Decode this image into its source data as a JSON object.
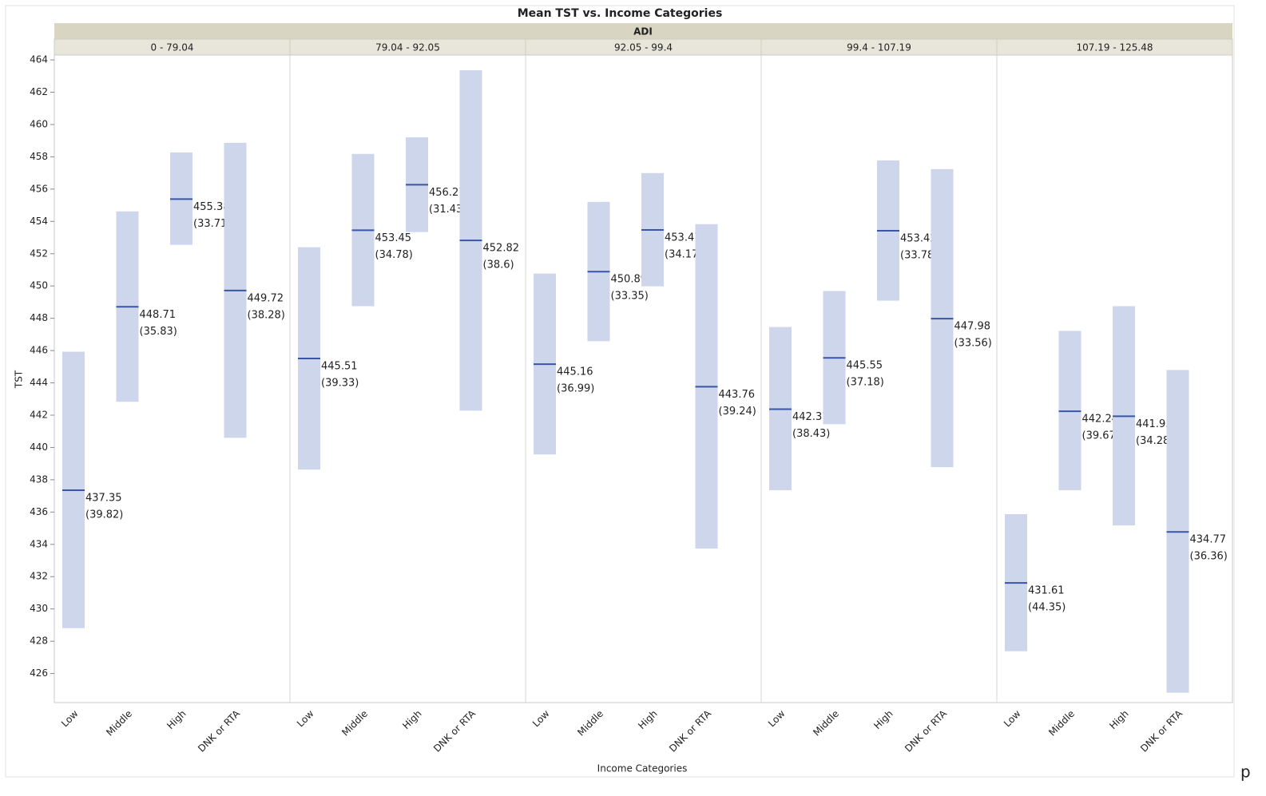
{
  "chart_data": {
    "type": "interval",
    "title": "Mean TST vs. Income Categories",
    "facet_label": "ADI",
    "y_label": "TST",
    "x_label": "Income Categories",
    "note": "p",
    "ylim": [
      424.2,
      464.3
    ],
    "yticks": [
      426,
      428,
      430,
      432,
      434,
      436,
      438,
      440,
      442,
      444,
      446,
      448,
      450,
      452,
      454,
      456,
      458,
      460,
      462,
      464
    ],
    "bar_color": "#cdd6ea",
    "mean_color": "#3a55a8",
    "categories": [
      "Low",
      "Middle",
      "High",
      "DNK or RTA"
    ],
    "panels": [
      {
        "name": "0 - 79.04",
        "values": [
          437.35,
          448.71,
          455.38,
          449.72
        ],
        "sd": [
          39.82,
          35.83,
          33.71,
          38.28
        ],
        "sd_labels": [
          "(39.82)",
          "(35.83)",
          "(33.71)",
          "(38.28)"
        ],
        "lower": [
          428.81,
          442.83,
          452.55,
          440.6
        ],
        "upper": [
          445.93,
          454.62,
          458.27,
          458.87
        ]
      },
      {
        "name": "79.04 - 92.05",
        "values": [
          445.51,
          453.45,
          456.27,
          452.82
        ],
        "sd": [
          39.33,
          34.78,
          31.43,
          38.6
        ],
        "sd_labels": [
          "(39.33)",
          "(34.78)",
          "(31.43)",
          "(38.6)"
        ],
        "lower": [
          438.63,
          448.75,
          453.34,
          442.28
        ],
        "upper": [
          452.4,
          458.18,
          459.21,
          463.36
        ]
      },
      {
        "name": "92.05 - 99.4",
        "values": [
          445.16,
          450.89,
          453.47,
          443.76
        ],
        "sd": [
          36.99,
          33.35,
          34.17,
          39.24
        ],
        "sd_labels": [
          "(36.99)",
          "(33.35)",
          "(34.17)",
          "(39.24)"
        ],
        "lower": [
          439.57,
          446.58,
          449.98,
          433.74
        ],
        "upper": [
          450.77,
          455.21,
          456.99,
          453.83
        ]
      },
      {
        "name": "99.4 - 107.19",
        "values": [
          442.37,
          445.55,
          453.42,
          447.98
        ],
        "sd": [
          38.43,
          37.18,
          33.78,
          33.56
        ],
        "sd_labels": [
          "(38.43)",
          "(37.18)",
          "(33.78)",
          "(33.56)"
        ],
        "lower": [
          437.35,
          441.44,
          449.09,
          438.78
        ],
        "upper": [
          447.46,
          449.69,
          457.78,
          457.24
        ]
      },
      {
        "name": "107.19 - 125.48",
        "values": [
          431.61,
          442.24,
          441.93,
          434.77
        ],
        "sd": [
          44.35,
          39.67,
          34.28,
          36.36
        ],
        "sd_labels": [
          "(44.35)",
          "(39.67)",
          "(34.28)",
          "(36.36)"
        ],
        "lower": [
          427.38,
          437.35,
          435.17,
          424.81
        ],
        "upper": [
          435.87,
          447.22,
          448.75,
          444.8
        ]
      }
    ]
  }
}
